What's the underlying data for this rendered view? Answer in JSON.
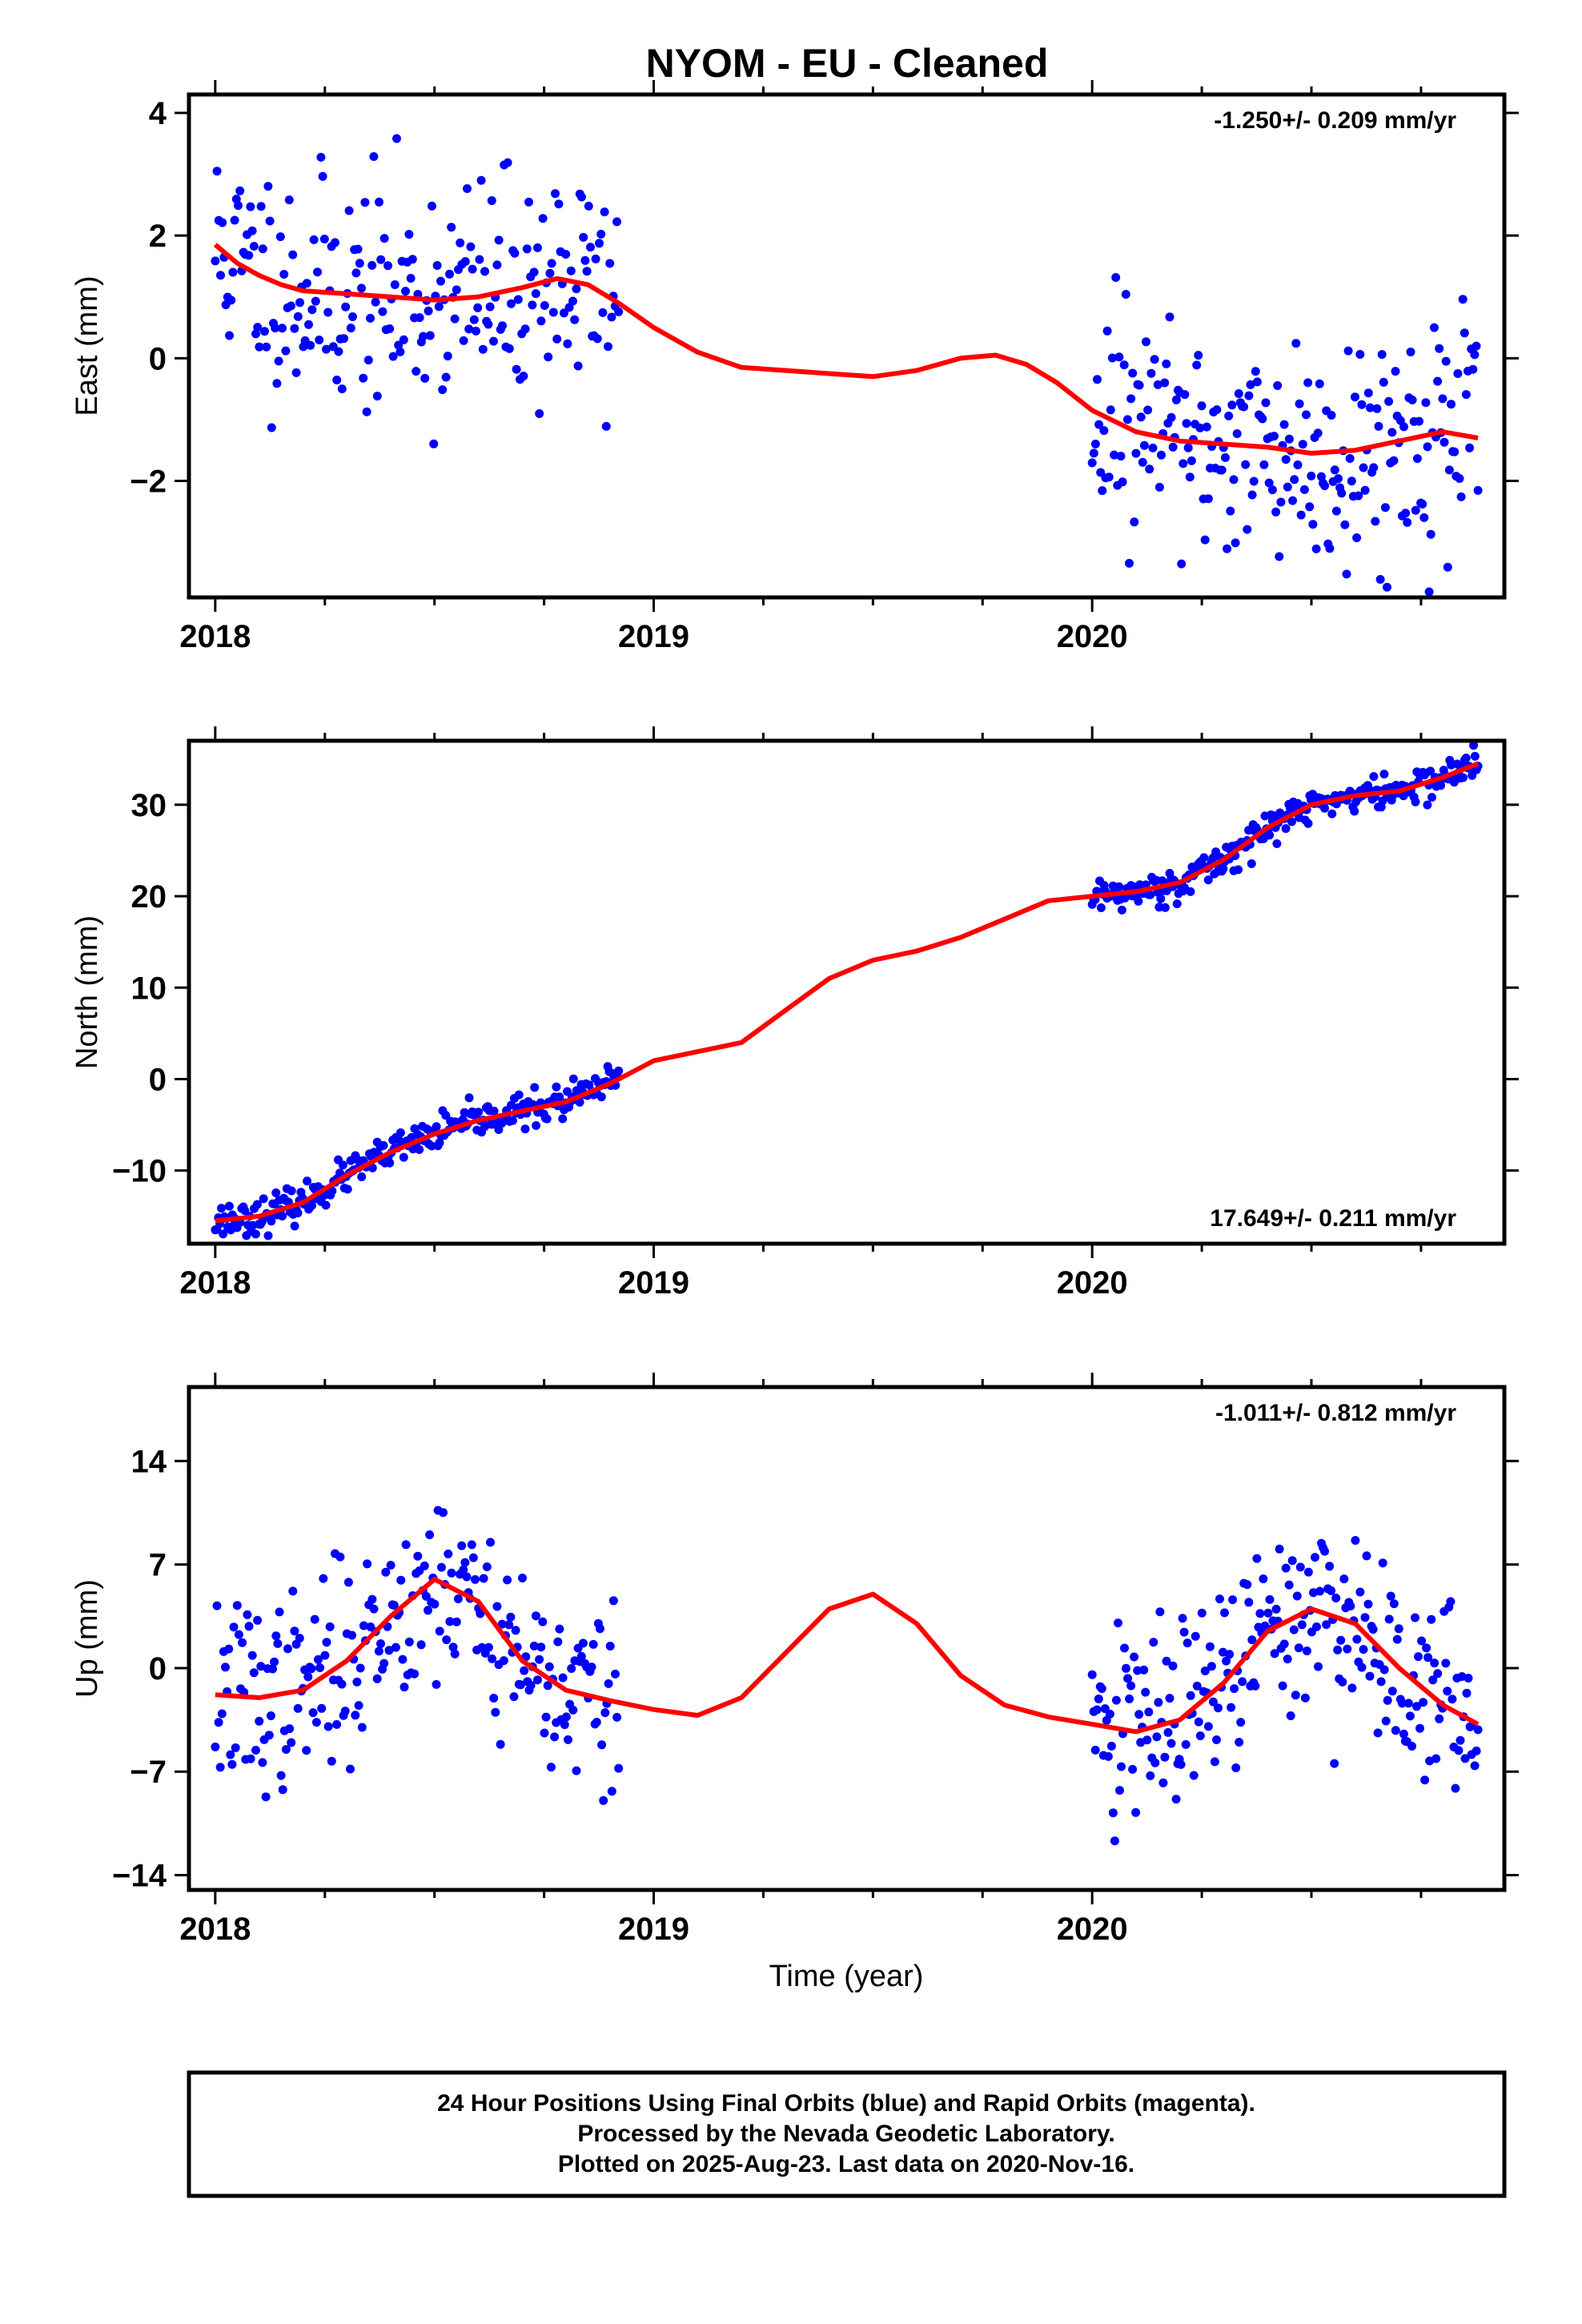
{
  "chart_data": {
    "title": "NYOM  - EU - Cleaned",
    "xlabel": "Time (year)",
    "colors": {
      "observed": "#0000ff",
      "model": "#ff0000",
      "frame": "#000000"
    },
    "legend": [
      "24 Hour Positions Using Final Orbits (blue) and Rapid Orbits (magenta).",
      "Processed by the Nevada Geodetic Laboratory.",
      "Plotted on 2025-Aug-23. Last data on 2020-Nov-16."
    ],
    "panels": [
      {
        "type": "scatter",
        "ylabel": "East (mm)",
        "rate": "-1.250+/- 0.209 mm/yr",
        "xlim": [
          2017.94,
          2020.94
        ],
        "ylim": [
          -3.9,
          4.3
        ],
        "xticks": [
          2018,
          2019,
          2020
        ],
        "yticks": [
          4,
          2,
          0,
          -2
        ],
        "yticklabels": [
          "4",
          "2",
          "0",
          "−2"
        ],
        "model": {
          "x": [
            2018.0,
            2018.05,
            2018.1,
            2018.15,
            2018.2,
            2018.3,
            2018.4,
            2018.5,
            2018.6,
            2018.7,
            2018.78,
            2018.85,
            2018.92,
            2019.0,
            2019.1,
            2019.2,
            2019.3,
            2019.4,
            2019.5,
            2019.6,
            2019.7,
            2019.78,
            2019.85,
            2019.92,
            2020.0,
            2020.1,
            2020.2,
            2020.3,
            2020.4,
            2020.5,
            2020.6,
            2020.7,
            2020.8,
            2020.88
          ],
          "y": [
            1.85,
            1.55,
            1.35,
            1.2,
            1.1,
            1.05,
            1.0,
            0.95,
            1.0,
            1.15,
            1.3,
            1.2,
            0.9,
            0.5,
            0.1,
            -0.15,
            -0.2,
            -0.25,
            -0.3,
            -0.2,
            0.0,
            0.05,
            -0.1,
            -0.4,
            -0.85,
            -1.2,
            -1.35,
            -1.4,
            -1.45,
            -1.55,
            -1.5,
            -1.35,
            -1.2,
            -1.3
          ]
        },
        "observations": {
          "start": 2018.0,
          "end": 2018.92,
          "start2": 2020.0,
          "end2": 2020.88,
          "noise": 0.95,
          "count": 230,
          "seed": 11
        }
      },
      {
        "type": "scatter",
        "ylabel": "North (mm)",
        "rate": "17.649+/- 0.211 mm/yr",
        "xlim": [
          2017.94,
          2020.94
        ],
        "ylim": [
          -18,
          37
        ],
        "xticks": [
          2018,
          2019,
          2020
        ],
        "yticks": [
          30,
          20,
          10,
          0,
          -10
        ],
        "yticklabels": [
          "30",
          "20",
          "10",
          "0",
          "−10"
        ],
        "model": {
          "x": [
            2018.0,
            2018.1,
            2018.2,
            2018.3,
            2018.4,
            2018.5,
            2018.6,
            2018.7,
            2018.8,
            2018.9,
            2019.0,
            2019.1,
            2019.2,
            2019.3,
            2019.4,
            2019.5,
            2019.6,
            2019.7,
            2019.8,
            2019.9,
            2020.0,
            2020.1,
            2020.2,
            2020.3,
            2020.4,
            2020.5,
            2020.6,
            2020.7,
            2020.8,
            2020.88
          ],
          "y": [
            -15.5,
            -15.0,
            -13.5,
            -10.5,
            -8.0,
            -6.0,
            -4.5,
            -3.5,
            -2.5,
            -0.5,
            2.0,
            3.0,
            4.0,
            7.5,
            11.0,
            13.0,
            14.0,
            15.5,
            17.5,
            19.5,
            20.0,
            20.5,
            21.5,
            24.0,
            27.5,
            30.0,
            31.0,
            31.5,
            33.0,
            34.5
          ]
        },
        "observations": {
          "start": 2018.0,
          "end": 2018.92,
          "start2": 2020.0,
          "end2": 2020.88,
          "noise": 0.9,
          "count": 260,
          "seed": 23
        }
      },
      {
        "type": "scatter",
        "ylabel": "Up (mm)",
        "rate": "-1.011+/- 0.812 mm/yr",
        "xlim": [
          2017.94,
          2020.94
        ],
        "ylim": [
          -15,
          19
        ],
        "xticks": [
          2018,
          2019,
          2020
        ],
        "yticks": [
          14,
          7,
          0,
          -7,
          -14
        ],
        "yticklabels": [
          "14",
          "7",
          "0",
          "−7",
          "−14"
        ],
        "model": {
          "x": [
            2018.0,
            2018.1,
            2018.2,
            2018.3,
            2018.4,
            2018.5,
            2018.6,
            2018.7,
            2018.8,
            2018.9,
            2019.0,
            2019.1,
            2019.2,
            2019.3,
            2019.4,
            2019.5,
            2019.6,
            2019.7,
            2019.8,
            2019.9,
            2020.0,
            2020.1,
            2020.2,
            2020.3,
            2020.4,
            2020.5,
            2020.6,
            2020.7,
            2020.8,
            2020.88
          ],
          "y": [
            -1.8,
            -2.0,
            -1.5,
            0.5,
            3.5,
            6.0,
            4.5,
            0.5,
            -1.5,
            -2.2,
            -2.8,
            -3.2,
            -2.0,
            1.0,
            4.0,
            5.0,
            3.0,
            -0.5,
            -2.5,
            -3.3,
            -3.8,
            -4.3,
            -3.5,
            -1.0,
            2.5,
            4.0,
            3.0,
            0.0,
            -2.5,
            -3.8
          ]
        },
        "observations": {
          "start": 2018.0,
          "end": 2018.92,
          "start2": 2020.0,
          "end2": 2020.88,
          "noise": 3.2,
          "count": 240,
          "seed": 37
        }
      }
    ]
  }
}
